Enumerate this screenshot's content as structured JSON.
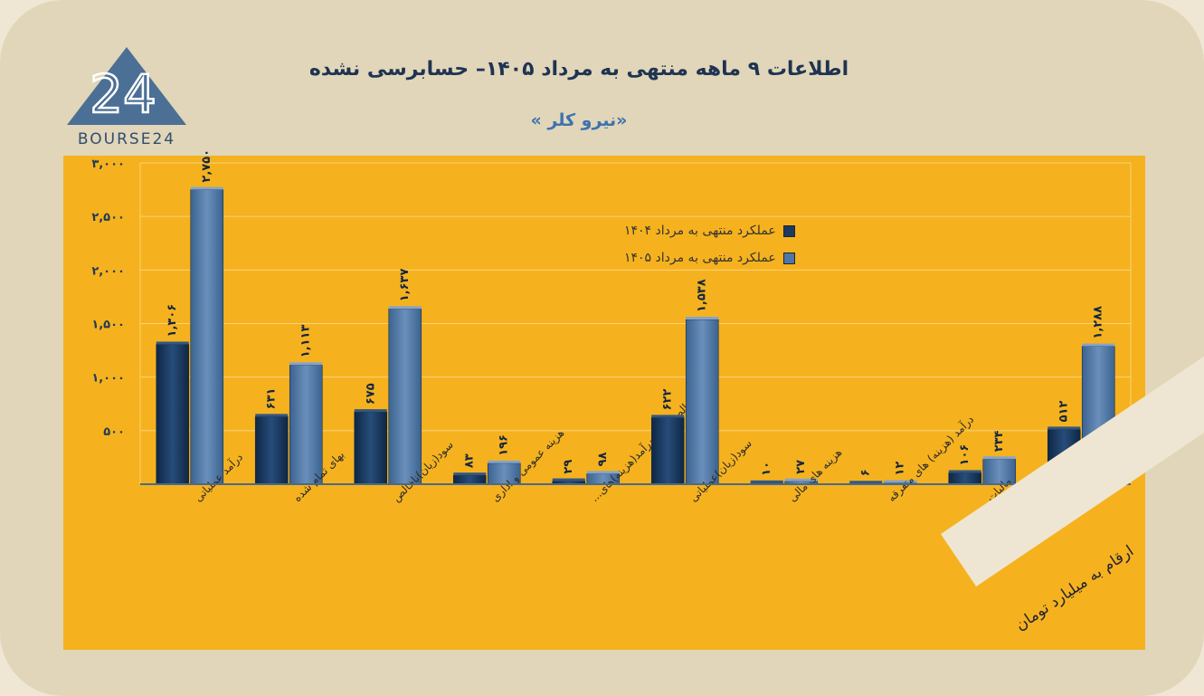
{
  "header": {
    "title": "اطلاعات ۹  ماهه منتهی به مرداد ۱۴۰۵– حسابرسی نشده",
    "subtitle": "«نیرو کلر »"
  },
  "logo": {
    "number": "24",
    "wordmark": "BOURSE24",
    "color": "#4b6f95"
  },
  "units_note": "ارقام به میلیارد تومان",
  "colors": {
    "panel": "#f5b21e",
    "series1": "#1a3a60",
    "series2": "#4e77a6",
    "grid": "#f9d27a",
    "axis_line": "#4a6a8a"
  },
  "chart_data": {
    "type": "bar",
    "ylim": [
      0,
      3000
    ],
    "yticks": [
      500,
      1000,
      1500,
      2000,
      2500,
      3000
    ],
    "ytick_labels": [
      "۵۰۰",
      "۱,۰۰۰",
      "۱,۵۰۰",
      "۲,۰۰۰",
      "۲,۵۰۰",
      "۳,۰۰۰"
    ],
    "grid": true,
    "legend_position": "top-center",
    "categories": [
      "درآمد عملیاتی",
      "بهای تمام شده",
      "سود(زیان)ناخالص",
      "هزینه عمومی و اداری",
      "خالص سایر درآمد(هزینه)های...",
      "سود(زیان)عملیاتی",
      "هزینه های مالی",
      "درآمد (هزینه) های متفرقه",
      "مالیات",
      "سود(زیان) خالص"
    ],
    "series": [
      {
        "name": "عملکرد منتهی به مرداد ۱۴۰۴",
        "values": [
          1306,
          631,
          675,
          83,
          29,
          622,
          10,
          6,
          106,
          512
        ],
        "labels": [
          "۱,۳۰۶",
          "۶۳۱",
          "۶۷۵",
          "۸۳",
          "۲۹",
          "۶۲۲",
          "۱۰",
          "۶",
          "۱۰۶",
          "۵۱۲"
        ]
      },
      {
        "name": "عملکرد منتهی به مرداد ۱۴۰۵",
        "values": [
          2750,
          1113,
          1637,
          196,
          98,
          1538,
          27,
          12,
          234,
          1288
        ],
        "labels": [
          "۲,۷۵۰",
          "۱,۱۱۳",
          "۱,۶۳۷",
          "۱۹۶",
          "۹۸",
          "۱,۵۳۸",
          "۲۷",
          "۱۲",
          "۲۳۴",
          "۱,۲۸۸"
        ]
      }
    ]
  }
}
